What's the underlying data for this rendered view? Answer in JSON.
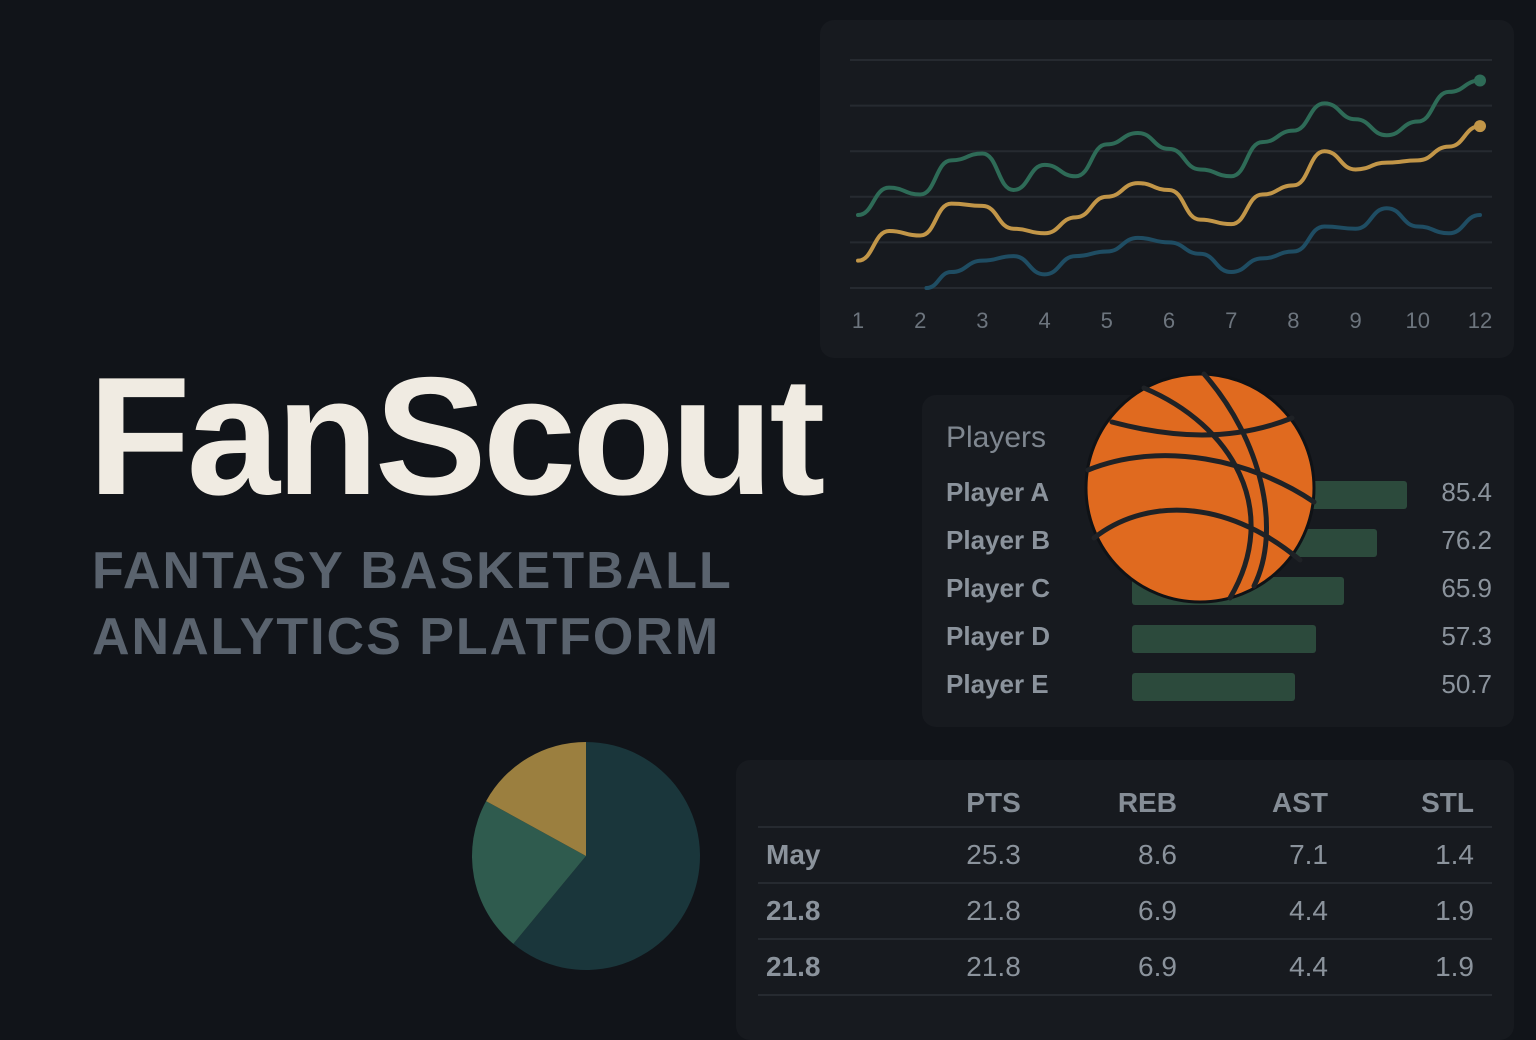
{
  "brand": {
    "name": "FanScout",
    "tagline_line1": "FANTASY BASKETBALL",
    "tagline_line2": "ANALYTICS PLATFORM"
  },
  "colors": {
    "background": "#111419",
    "panel": "#171a1f",
    "green": "#2e6b57",
    "gold": "#c29648",
    "blue": "#1f4d63",
    "bar": "#2c4a3c",
    "ball": "#e06a1f"
  },
  "chart_data": [
    {
      "type": "line",
      "x_ticks": [
        "1",
        "2",
        "3",
        "4",
        "5",
        "6",
        "7",
        "8",
        "9",
        "10",
        "12"
      ],
      "ylim": [
        0,
        10
      ],
      "grid": true,
      "series": [
        {
          "color": "#2e6b57",
          "x": [
            1,
            1.5,
            2,
            2.5,
            3,
            3.5,
            4,
            4.5,
            5,
            5.5,
            6,
            6.5,
            7,
            7.5,
            8,
            8.5,
            9,
            9.5,
            10,
            10.5,
            11
          ],
          "values": [
            3.2,
            4.4,
            4.1,
            5.6,
            5.9,
            4.3,
            5.4,
            4.9,
            6.3,
            6.8,
            6.1,
            5.2,
            4.9,
            6.4,
            6.9,
            8.1,
            7.4,
            6.7,
            7.3,
            8.6,
            9.1
          ]
        },
        {
          "color": "#c29648",
          "x": [
            1,
            1.5,
            2,
            2.5,
            3,
            3.5,
            4,
            4.5,
            5,
            5.5,
            6,
            6.5,
            7,
            7.5,
            8,
            8.5,
            9,
            9.5,
            10,
            10.5,
            11
          ],
          "values": [
            1.2,
            2.5,
            2.3,
            3.7,
            3.6,
            2.6,
            2.4,
            3.1,
            4.0,
            4.6,
            4.3,
            3.0,
            2.8,
            4.1,
            4.5,
            6.0,
            5.2,
            5.5,
            5.6,
            6.2,
            7.1
          ]
        },
        {
          "color": "#1f4d63",
          "x": [
            2.1,
            2.5,
            3,
            3.5,
            4,
            4.5,
            5,
            5.5,
            6,
            6.5,
            7,
            7.5,
            8,
            8.5,
            9,
            9.5,
            10,
            10.5,
            11
          ],
          "values": [
            0.0,
            0.7,
            1.2,
            1.4,
            0.6,
            1.4,
            1.6,
            2.2,
            2.0,
            1.5,
            0.7,
            1.3,
            1.6,
            2.7,
            2.6,
            3.5,
            2.7,
            2.4,
            3.2
          ]
        }
      ]
    },
    {
      "type": "bar",
      "title": "Players",
      "categories": [
        "Player A",
        "Player B",
        "Player C",
        "Player D",
        "Player E"
      ],
      "values": [
        85.4,
        76.2,
        65.9,
        57.3,
        50.7
      ],
      "value_labels": [
        "85.4",
        "76.2",
        "65.9",
        "57.3",
        "50.7"
      ],
      "xlim": [
        0,
        100
      ]
    },
    {
      "type": "pie",
      "values": [
        61,
        22,
        17
      ],
      "colors": [
        "#1a363b",
        "#2f5b4e",
        "#9b7f3f"
      ]
    },
    {
      "type": "table",
      "columns": [
        "",
        "PTS",
        "REB",
        "AST",
        "STL"
      ],
      "rows": [
        [
          "May",
          "25.3",
          "8.6",
          "7.1",
          "1.4"
        ],
        [
          "21.8",
          "21.8",
          "6.9",
          "4.4",
          "1.9"
        ],
        [
          "21.8",
          "21.8",
          "6.9",
          "4.4",
          "1.9"
        ]
      ]
    }
  ]
}
